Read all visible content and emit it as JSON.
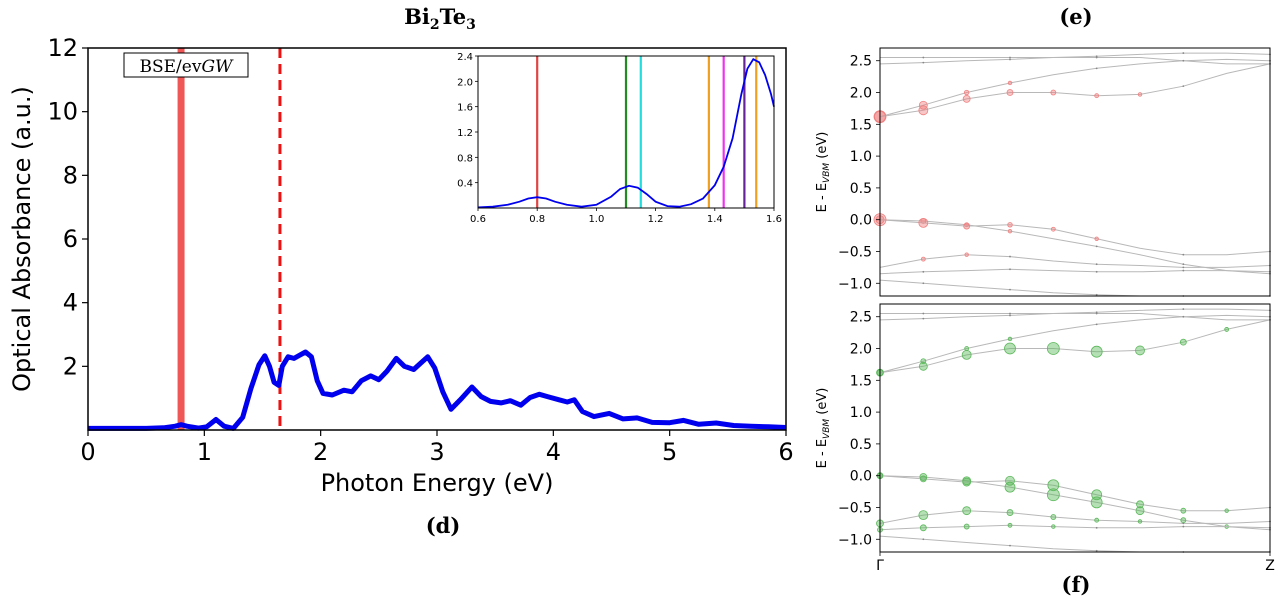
{
  "panel_labels": {
    "d": "(d)",
    "e": "(e)",
    "f": "(f)"
  },
  "chart_data": [
    {
      "id": "absorbance",
      "type": "line",
      "title_main": "Bi",
      "title_sub1": "2",
      "title_mid": "Te",
      "title_sub2": "3",
      "xlabel": "Photon Energy (eV)",
      "ylabel": "Optical Absorbance (a.u.)",
      "xlim": [
        0,
        6
      ],
      "ylim": [
        0,
        12
      ],
      "xticks": [
        0,
        1,
        2,
        3,
        4,
        5,
        6
      ],
      "yticks": [
        2,
        4,
        6,
        8,
        10,
        12
      ],
      "xtick_labels": [
        "0",
        "1",
        "2",
        "3",
        "4",
        "5",
        "6"
      ],
      "ytick_labels": [
        "2",
        "4",
        "6",
        "8",
        "10",
        "12"
      ],
      "legend_box": {
        "prefix": "BSE/ev",
        "suffix": "GW"
      },
      "series": [
        {
          "color": "#0000ee",
          "x": [
            0,
            0.5,
            0.65,
            0.75,
            0.8,
            0.85,
            0.95,
            1.02,
            1.1,
            1.17,
            1.25,
            1.33,
            1.4,
            1.47,
            1.52,
            1.56,
            1.6,
            1.64,
            1.67,
            1.72,
            1.77,
            1.82,
            1.87,
            1.92,
            1.97,
            2.02,
            2.1,
            2.2,
            2.27,
            2.35,
            2.43,
            2.5,
            2.57,
            2.65,
            2.72,
            2.8,
            2.86,
            2.92,
            2.98,
            3.05,
            3.12,
            3.2,
            3.3,
            3.38,
            3.46,
            3.55,
            3.63,
            3.72,
            3.8,
            3.88,
            3.95,
            4.05,
            4.12,
            4.18,
            4.25,
            4.35,
            4.48,
            4.6,
            4.72,
            4.85,
            5.0,
            5.12,
            5.25,
            5.4,
            5.55,
            5.7,
            5.85,
            6.0
          ],
          "y": [
            0.05,
            0.05,
            0.07,
            0.12,
            0.17,
            0.12,
            0.06,
            0.1,
            0.33,
            0.12,
            0.05,
            0.4,
            1.3,
            2.05,
            2.33,
            2.0,
            1.5,
            1.4,
            2.0,
            2.3,
            2.25,
            2.35,
            2.45,
            2.3,
            1.55,
            1.15,
            1.1,
            1.25,
            1.2,
            1.55,
            1.7,
            1.58,
            1.85,
            2.25,
            2.0,
            1.9,
            2.1,
            2.3,
            1.95,
            1.2,
            0.65,
            0.95,
            1.35,
            1.05,
            0.9,
            0.85,
            0.92,
            0.78,
            1.02,
            1.12,
            1.05,
            0.95,
            0.88,
            0.95,
            0.58,
            0.42,
            0.52,
            0.35,
            0.38,
            0.24,
            0.23,
            0.3,
            0.18,
            0.22,
            0.14,
            0.12,
            0.1,
            0.08
          ]
        }
      ],
      "vlines": [
        {
          "x": 0.8,
          "color": "#ee4444",
          "style": "solid"
        },
        {
          "x": 1.65,
          "color": "#ee1111",
          "style": "dashed"
        }
      ]
    },
    {
      "id": "inset",
      "type": "line",
      "xlim": [
        0.6,
        1.6
      ],
      "ylim": [
        0,
        2.4
      ],
      "xticks": [
        0.6,
        0.8,
        1.0,
        1.2,
        1.4,
        1.6
      ],
      "yticks": [
        0.4,
        0.8,
        1.2,
        1.6,
        2.0,
        2.4
      ],
      "xtick_labels": [
        "0.6",
        "0.8",
        "1.0",
        "1.2",
        "1.4",
        "1.6"
      ],
      "ytick_labels": [
        "0.4",
        "0.8",
        "1.2",
        "1.6",
        "2.0",
        "2.4"
      ],
      "series": [
        {
          "color": "#0000ee",
          "x": [
            0.6,
            0.65,
            0.7,
            0.74,
            0.77,
            0.8,
            0.83,
            0.86,
            0.9,
            0.95,
            1.0,
            1.05,
            1.08,
            1.11,
            1.14,
            1.17,
            1.2,
            1.24,
            1.28,
            1.32,
            1.36,
            1.4,
            1.43,
            1.46,
            1.49,
            1.51,
            1.53,
            1.55,
            1.57,
            1.59,
            1.6
          ],
          "y": [
            0.01,
            0.02,
            0.05,
            0.1,
            0.15,
            0.17,
            0.15,
            0.1,
            0.05,
            0.02,
            0.05,
            0.18,
            0.3,
            0.35,
            0.32,
            0.22,
            0.1,
            0.03,
            0.02,
            0.06,
            0.15,
            0.36,
            0.65,
            1.1,
            1.8,
            2.2,
            2.35,
            2.3,
            2.1,
            1.8,
            1.6
          ]
        }
      ],
      "vlines": [
        {
          "x": 0.8,
          "color": "#e04444"
        },
        {
          "x": 1.1,
          "color": "#228b22"
        },
        {
          "x": 1.15,
          "color": "#22dddd"
        },
        {
          "x": 1.38,
          "color": "#f0a020"
        },
        {
          "x": 1.43,
          "color": "#ee33ee"
        },
        {
          "x": 1.5,
          "color": "#662299"
        },
        {
          "x": 1.54,
          "color": "#f0a020"
        }
      ]
    },
    {
      "id": "bands-top",
      "type": "scatter",
      "ylabel_main": "E - E",
      "ylabel_sub": "VBM",
      "ylabel_unit": " (eV)",
      "ylim": [
        -1.2,
        2.7
      ],
      "yticks": [
        2.5,
        2.0,
        1.5,
        1.0,
        0.5,
        0.0,
        -0.5,
        -1.0
      ],
      "ytick_labels": [
        "2.5",
        "2.0",
        "1.5",
        "1.0",
        "0.5",
        "0.0",
        "−0.5",
        "−1.0"
      ],
      "weight_color": "#f08080",
      "bands": [
        [
          2.55,
          2.55,
          2.55,
          2.55,
          2.55,
          2.55,
          2.55,
          2.5,
          2.45,
          2.45
        ],
        [
          2.45,
          2.47,
          2.5,
          2.52,
          2.55,
          2.57,
          2.6,
          2.62,
          2.62,
          2.6
        ],
        [
          1.62,
          1.8,
          2.0,
          2.15,
          2.28,
          2.38,
          2.45,
          2.5,
          2.52,
          2.5
        ],
        [
          1.62,
          1.72,
          1.9,
          2.0,
          2.0,
          1.95,
          1.97,
          2.1,
          2.3,
          2.45
        ],
        [
          0.0,
          -0.02,
          -0.08,
          -0.18,
          -0.3,
          -0.42,
          -0.55,
          -0.7,
          -0.8,
          -0.85
        ],
        [
          0.0,
          -0.05,
          -0.1,
          -0.08,
          -0.15,
          -0.3,
          -0.45,
          -0.55,
          -0.55,
          -0.5
        ],
        [
          -0.75,
          -0.62,
          -0.55,
          -0.58,
          -0.65,
          -0.7,
          -0.72,
          -0.75,
          -0.75,
          -0.72
        ],
        [
          -0.85,
          -0.82,
          -0.8,
          -0.78,
          -0.8,
          -0.82,
          -0.82,
          -0.8,
          -0.8,
          -0.82
        ],
        [
          -0.95,
          -1.0,
          -1.05,
          -1.1,
          -1.15,
          -1.18,
          -1.2,
          -1.2,
          -1.2,
          -1.2
        ]
      ],
      "weights": [
        [
          0,
          0,
          0,
          0,
          0,
          0,
          0,
          0,
          0,
          0
        ],
        [
          0,
          0,
          0,
          0,
          0,
          0,
          0,
          0,
          0,
          0
        ],
        [
          0.9,
          0.5,
          0.15,
          0.05,
          0,
          0,
          0,
          0,
          0,
          0
        ],
        [
          0.8,
          0.6,
          0.4,
          0.3,
          0.2,
          0.1,
          0.05,
          0,
          0,
          0
        ],
        [
          0.5,
          0.2,
          0.1,
          0.05,
          0,
          0,
          0,
          0,
          0,
          0
        ],
        [
          0.9,
          0.6,
          0.3,
          0.15,
          0.1,
          0.05,
          0,
          0,
          0,
          0
        ],
        [
          0,
          0.1,
          0.05,
          0,
          0,
          0,
          0,
          0,
          0,
          0
        ],
        [
          0,
          0,
          0,
          0,
          0,
          0,
          0,
          0,
          0,
          0
        ],
        [
          0,
          0,
          0,
          0,
          0,
          0,
          0,
          0,
          0,
          0
        ]
      ]
    },
    {
      "id": "bands-bottom",
      "type": "scatter",
      "ylabel_main": "E - E",
      "ylabel_sub": "VBM",
      "ylabel_unit": " (eV)",
      "ylim": [
        -1.2,
        2.7
      ],
      "yticks": [
        2.5,
        2.0,
        1.5,
        1.0,
        0.5,
        0.0,
        -0.5,
        -1.0
      ],
      "ytick_labels": [
        "2.5",
        "2.0",
        "1.5",
        "1.0",
        "0.5",
        "0.0",
        "−0.5",
        "−1.0"
      ],
      "xtick_labels": [
        "Γ",
        "Z"
      ],
      "weight_color": "#5cb85c",
      "bands": [
        [
          2.55,
          2.55,
          2.55,
          2.55,
          2.55,
          2.55,
          2.55,
          2.5,
          2.45,
          2.45
        ],
        [
          2.45,
          2.47,
          2.5,
          2.52,
          2.55,
          2.57,
          2.6,
          2.62,
          2.62,
          2.6
        ],
        [
          1.62,
          1.8,
          2.0,
          2.15,
          2.28,
          2.38,
          2.45,
          2.5,
          2.52,
          2.5
        ],
        [
          1.62,
          1.72,
          1.9,
          2.0,
          2.0,
          1.95,
          1.97,
          2.1,
          2.3,
          2.45
        ],
        [
          0.0,
          -0.02,
          -0.08,
          -0.18,
          -0.3,
          -0.42,
          -0.55,
          -0.7,
          -0.8,
          -0.85
        ],
        [
          0.0,
          -0.05,
          -0.1,
          -0.08,
          -0.15,
          -0.3,
          -0.45,
          -0.55,
          -0.55,
          -0.5
        ],
        [
          -0.75,
          -0.62,
          -0.55,
          -0.58,
          -0.65,
          -0.7,
          -0.72,
          -0.75,
          -0.75,
          -0.72
        ],
        [
          -0.85,
          -0.82,
          -0.8,
          -0.78,
          -0.8,
          -0.82,
          -0.82,
          -0.8,
          -0.8,
          -0.82
        ],
        [
          -0.95,
          -1.0,
          -1.05,
          -1.1,
          -1.15,
          -1.18,
          -1.2,
          -1.2,
          -1.2,
          -1.2
        ]
      ],
      "weights": [
        [
          0,
          0,
          0,
          0,
          0,
          0,
          0,
          0,
          0,
          0
        ],
        [
          0,
          0,
          0,
          0,
          0,
          0,
          0,
          0,
          0,
          0
        ],
        [
          0.3,
          0.2,
          0.1,
          0.05,
          0,
          0,
          0,
          0,
          0,
          0
        ],
        [
          0.4,
          0.5,
          0.6,
          0.8,
          0.9,
          0.8,
          0.6,
          0.3,
          0.1,
          0
        ],
        [
          0.3,
          0.4,
          0.5,
          0.7,
          0.9,
          0.8,
          0.5,
          0.2,
          0.05,
          0
        ],
        [
          0.2,
          0.3,
          0.5,
          0.6,
          0.8,
          0.7,
          0.4,
          0.2,
          0.05,
          0
        ],
        [
          0.4,
          0.6,
          0.5,
          0.3,
          0.2,
          0.1,
          0.05,
          0,
          0,
          0
        ],
        [
          0.2,
          0.3,
          0.2,
          0.1,
          0.05,
          0,
          0,
          0,
          0,
          0
        ],
        [
          0,
          0,
          0,
          0,
          0,
          0,
          0,
          0,
          0,
          0
        ]
      ]
    }
  ]
}
